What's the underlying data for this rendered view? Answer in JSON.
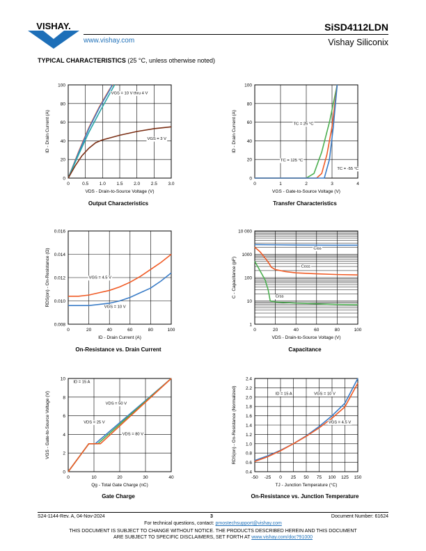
{
  "header": {
    "logo_text": "VISHAY.",
    "website": "www.vishay.com",
    "doc_title": "SiSD4112LDN",
    "company": "Vishay Siliconix"
  },
  "section": {
    "heading": "TYPICAL CHARACTERISTICS",
    "note": " (25 °C, unless otherwise noted)"
  },
  "colors": {
    "blue": "#3a7cc7",
    "orange": "#f05a24",
    "green": "#4caf50",
    "teal": "#29a6a6",
    "brown": "#7a2e14",
    "gray": "#999999",
    "vishay_blue": "#1d6fb8"
  },
  "charts": [
    {
      "id": "output",
      "caption": "Output Characteristics",
      "chart_data": {
        "type": "line",
        "xlabel": "VDS - Drain-to-Source Voltage (V)",
        "ylabel": "ID - Drain Current (A)",
        "xlim": [
          0,
          3
        ],
        "ylim": [
          0,
          100
        ],
        "xticks": [
          "0",
          "0.5",
          "1.0",
          "1.5",
          "2.0",
          "2.5",
          "3.0"
        ],
        "yticks": [
          "0",
          "20",
          "40",
          "60",
          "80",
          "100"
        ],
        "xtickv": [
          0,
          0.5,
          1,
          1.5,
          2,
          2.5,
          3
        ],
        "ytickv": [
          0,
          20,
          40,
          60,
          80,
          100
        ],
        "series": [
          {
            "name": "VGS = 10 V thru 4 V",
            "color": "#f05a24",
            "x": [
              0,
              0.3,
              0.6,
              0.9,
              1.2,
              1.3
            ],
            "y": [
              0,
              28,
              54,
              76,
              95,
              100
            ]
          },
          {
            "name": "",
            "color": "#3a7cc7",
            "x": [
              0,
              0.3,
              0.6,
              0.9,
              1.2,
              1.28
            ],
            "y": [
              0,
              27,
              53,
              75,
              94,
              100
            ]
          },
          {
            "name": "",
            "color": "#29a6a6",
            "x": [
              0,
              0.3,
              0.6,
              0.9,
              1.2,
              1.35
            ],
            "y": [
              0,
              25,
              49,
              70,
              90,
              100
            ]
          },
          {
            "name": "VGS = 3 V",
            "color": "#7a2e14",
            "x": [
              0,
              0.2,
              0.4,
              0.6,
              0.8,
              1.0,
              1.2,
              1.5,
              2.0,
              2.5,
              3.0
            ],
            "y": [
              0,
              13,
              24,
              32,
              38,
              41,
              43,
              46,
              50,
              53,
              55
            ]
          }
        ],
        "annotations": [
          {
            "text": "VGS = 10 V thru 4 V",
            "x": 1.25,
            "y": 90
          },
          {
            "text": "VGS = 3 V",
            "x": 2.3,
            "y": 41
          }
        ]
      }
    },
    {
      "id": "transfer",
      "caption": "Transfer Characteristics",
      "chart_data": {
        "type": "line",
        "xlabel": "VGS - Gate-to-Source Voltage (V)",
        "ylabel": "ID - Drain Current (A)",
        "xlim": [
          0,
          4
        ],
        "ylim": [
          0,
          100
        ],
        "xticks": [
          "0",
          "1",
          "2",
          "3",
          "4"
        ],
        "yticks": [
          "0",
          "20",
          "40",
          "60",
          "80",
          "100"
        ],
        "xtickv": [
          0,
          1,
          2,
          3,
          4
        ],
        "ytickv": [
          0,
          20,
          40,
          60,
          80,
          100
        ],
        "series": [
          {
            "name": "TC = 125 °C",
            "color": "#4caf50",
            "x": [
              0,
              2.0,
              2.3,
              2.6,
              2.9,
              3.2
            ],
            "y": [
              0,
              0,
              5,
              28,
              60,
              100
            ]
          },
          {
            "name": "TC = 25 °C",
            "color": "#f05a24",
            "x": [
              0,
              2.4,
              2.6,
              2.8,
              3.0,
              3.2
            ],
            "y": [
              0,
              0,
              5,
              25,
              55,
              100
            ]
          },
          {
            "name": "TC = -55 °C",
            "color": "#3a7cc7",
            "x": [
              0,
              2.7,
              2.9,
              3.05,
              3.2
            ],
            "y": [
              0,
              0,
              20,
              55,
              100
            ]
          }
        ],
        "annotations": [
          {
            "text": "TC = 25 °C",
            "x": 1.5,
            "y": 57
          },
          {
            "text": "TC = 125 °C",
            "x": 1.0,
            "y": 18
          },
          {
            "text": "TC = -55 °C",
            "x": 3.2,
            "y": 9
          }
        ]
      }
    },
    {
      "id": "ron_id",
      "caption": "On-Resistance vs. Drain Current",
      "chart_data": {
        "type": "line",
        "xlabel": "ID - Drain Current (A)",
        "ylabel": "RDS(on) - On-Resistance (Ω)",
        "xlim": [
          0,
          100
        ],
        "ylim": [
          0.008,
          0.016
        ],
        "xticks": [
          "0",
          "20",
          "40",
          "60",
          "80",
          "100"
        ],
        "yticks": [
          "0.008",
          "0.010",
          "0.012",
          "0.014",
          "0.016"
        ],
        "xtickv": [
          0,
          20,
          40,
          60,
          80,
          100
        ],
        "ytickv": [
          0.008,
          0.01,
          0.012,
          0.014,
          0.016
        ],
        "series": [
          {
            "name": "VGS = 4.5 V",
            "color": "#f05a24",
            "x": [
              0,
              10,
              20,
              30,
              40,
              50,
              60,
              70,
              80,
              90,
              100
            ],
            "y": [
              0.0104,
              0.0104,
              0.0105,
              0.0107,
              0.0109,
              0.0112,
              0.0116,
              0.0121,
              0.0127,
              0.0133,
              0.014
            ]
          },
          {
            "name": "VGS = 10 V",
            "color": "#3a7cc7",
            "x": [
              0,
              10,
              20,
              30,
              40,
              50,
              60,
              70,
              80,
              90,
              100
            ],
            "y": [
              0.0096,
              0.0096,
              0.0096,
              0.0097,
              0.0098,
              0.01,
              0.0103,
              0.0107,
              0.0111,
              0.0117,
              0.0124
            ]
          }
        ],
        "annotations": [
          {
            "text": "VGS = 4.5 V",
            "x": 20,
            "y": 0.0119
          },
          {
            "text": "VGS = 10 V",
            "x": 35,
            "y": 0.0094
          }
        ]
      }
    },
    {
      "id": "capacitance",
      "caption": "Capacitance",
      "chart_data": {
        "type": "line",
        "xlabel": "VDS - Drain-to-Source Voltage (V)",
        "ylabel": "C - Capacitance (pF)",
        "yscale": "log",
        "xlim": [
          0,
          100
        ],
        "ylim": [
          1,
          10000
        ],
        "xticks": [
          "0",
          "20",
          "40",
          "60",
          "80",
          "100"
        ],
        "yticks": [
          "1",
          "10",
          "100",
          "1000",
          "10 000"
        ],
        "xtickv": [
          0,
          20,
          40,
          60,
          80,
          100
        ],
        "ytickv": [
          1,
          10,
          100,
          1000,
          10000
        ],
        "series": [
          {
            "name": "Ciss",
            "color": "#3a7cc7",
            "x": [
              0,
              20,
              40,
              60,
              80,
              100
            ],
            "y": [
              2600,
              2550,
              2500,
              2480,
              2460,
              2450
            ]
          },
          {
            "name": "Coss",
            "color": "#f05a24",
            "x": [
              0,
              5,
              10,
              14,
              16,
              20,
              30,
              40,
              60,
              80,
              100
            ],
            "y": [
              2000,
              1300,
              700,
              400,
              280,
              220,
              180,
              160,
              145,
              135,
              130
            ]
          },
          {
            "name": "Crss",
            "color": "#4caf50",
            "x": [
              0,
              5,
              10,
              13,
              15,
              20,
              40,
              60,
              80,
              100
            ],
            "y": [
              500,
              200,
              80,
              30,
              10,
              9,
              8,
              7.5,
              7,
              6.8
            ]
          }
        ],
        "annotations": [
          {
            "text": "Ciss",
            "x": 57,
            "y": 1600
          },
          {
            "text": "Coss",
            "x": 45,
            "y": 270
          },
          {
            "text": "Crss",
            "x": 20,
            "y": 14
          }
        ]
      }
    },
    {
      "id": "gate_charge",
      "caption": "Gate Charge",
      "chart_data": {
        "type": "line",
        "xlabel": "Qg - Total Gate Charge (nC)",
        "ylabel": "VGS - Gate-to-Source Voltage (V)",
        "xlim": [
          0,
          40
        ],
        "ylim": [
          0,
          10
        ],
        "xticks": [
          "0",
          "10",
          "20",
          "30",
          "40"
        ],
        "yticks": [
          "0",
          "2",
          "4",
          "6",
          "8",
          "10"
        ],
        "xtickv": [
          0,
          10,
          20,
          30,
          40
        ],
        "ytickv": [
          0,
          2,
          4,
          6,
          8,
          10
        ],
        "series": [
          {
            "name": "VDS = 25 V",
            "color": "#3a7cc7",
            "x": [
              0,
              8,
              10.5,
              40
            ],
            "y": [
              0,
              3,
              3,
              10
            ]
          },
          {
            "name": "VDS = 50 V",
            "color": "#4caf50",
            "x": [
              0,
              8,
              11.5,
              40
            ],
            "y": [
              0,
              3,
              3,
              10
            ]
          },
          {
            "name": "VDS = 80 V",
            "color": "#f05a24",
            "x": [
              0,
              8,
              12.5,
              40
            ],
            "y": [
              0,
              3,
              3,
              10
            ]
          }
        ],
        "annotations": [
          {
            "text": "ID = 15 A",
            "x": 2,
            "y": 9.5
          },
          {
            "text": "VDS = 50 V",
            "x": 14.5,
            "y": 7.2
          },
          {
            "text": "VDS = 25 V",
            "x": 6,
            "y": 5.2
          },
          {
            "text": "VDS = 80 V",
            "x": 21,
            "y": 3.9
          }
        ]
      }
    },
    {
      "id": "ron_temp",
      "caption": "On-Resistance vs. Junction Temperature",
      "chart_data": {
        "type": "line",
        "xlabel": "TJ - Junction Temperature (°C)",
        "ylabel": "RDS(on) - On-Resistance (Normalized)",
        "xlim": [
          -50,
          150
        ],
        "ylim": [
          0.4,
          2.4
        ],
        "xticks": [
          "-50",
          "-25",
          "0",
          "25",
          "50",
          "75",
          "100",
          "125",
          "150"
        ],
        "yticks": [
          "0.4",
          "0.6",
          "0.8",
          "1.0",
          "1.2",
          "1.4",
          "1.6",
          "1.8",
          "2.0",
          "2.2",
          "2.4"
        ],
        "xtickv": [
          -50,
          -25,
          0,
          25,
          50,
          75,
          100,
          125,
          150
        ],
        "ytickv": [
          0.4,
          0.6,
          0.8,
          1.0,
          1.2,
          1.4,
          1.6,
          1.8,
          2.0,
          2.2,
          2.4
        ],
        "series": [
          {
            "name": "VGS = 10 V",
            "color": "#3a7cc7",
            "x": [
              -50,
              -25,
              0,
              25,
              50,
              75,
              100,
              125,
              150
            ],
            "y": [
              0.64,
              0.74,
              0.86,
              1.0,
              1.17,
              1.37,
              1.6,
              1.87,
              2.4
            ]
          },
          {
            "name": "VGS = 4.5 V",
            "color": "#f05a24",
            "x": [
              -50,
              -25,
              0,
              25,
              50,
              75,
              100,
              125,
              150
            ],
            "y": [
              0.62,
              0.72,
              0.85,
              1.0,
              1.16,
              1.34,
              1.55,
              1.79,
              2.3
            ]
          }
        ],
        "annotations": [
          {
            "text": "ID = 15 A",
            "x": -10,
            "y": 2.05
          },
          {
            "text": "VGS = 10 V",
            "x": 65,
            "y": 2.05
          },
          {
            "text": "VGS = 4.5 V",
            "x": 93,
            "y": 1.44
          }
        ]
      }
    }
  ],
  "footer": {
    "left": "S24-1144-Rev. A, 04-Nov-2024",
    "page": "3",
    "right": "Document Number: 61624",
    "contact_prefix": "For technical questions, contact: ",
    "contact_email": "pmostechsupport@vishay.com",
    "disclaimer1": "THIS DOCUMENT IS SUBJECT TO CHANGE WITHOUT NOTICE. THE PRODUCTS DESCRIBED HEREIN AND THIS DOCUMENT",
    "disclaimer2_prefix": "ARE SUBJECT TO SPECIFIC DISCLAIMERS, SET FORTH AT ",
    "disclaimer2_link": "www.vishay.com/doc?91000"
  }
}
